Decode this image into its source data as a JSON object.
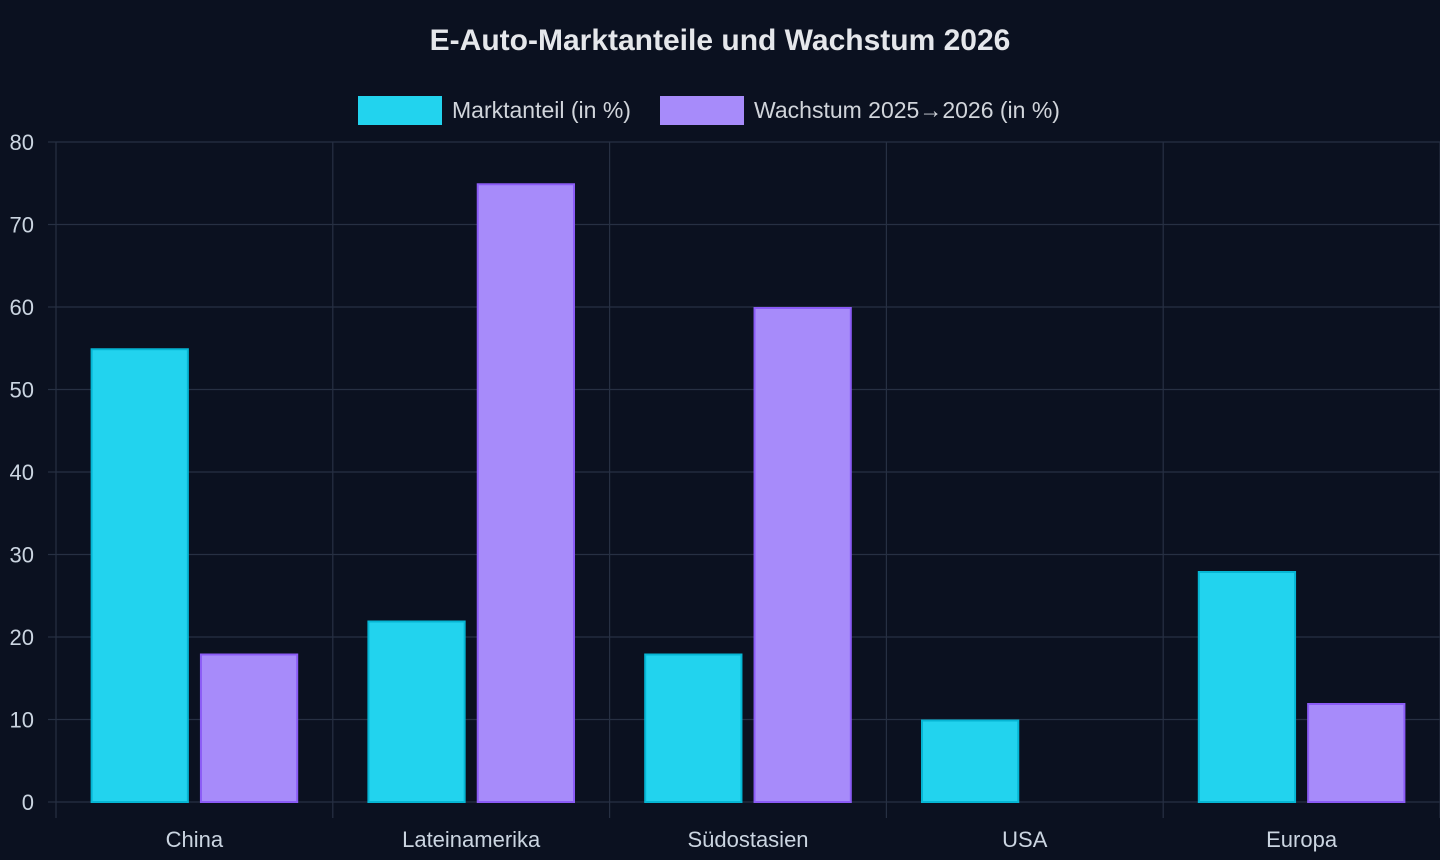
{
  "chart_data": {
    "type": "bar",
    "title": "E-Auto-Marktanteile und Wachstum 2026",
    "categories": [
      "China",
      "Lateinamerika",
      "Südostasien",
      "USA",
      "Europa"
    ],
    "series": [
      {
        "name": "Marktanteil (in %)",
        "values": [
          55,
          22,
          18,
          10,
          28
        ],
        "color": "#22d3ee",
        "border": "#06b6d4"
      },
      {
        "name": "Wachstum 2025→2026 (in %)",
        "values": [
          18,
          75,
          60,
          0,
          12
        ],
        "color": "#a78bfa",
        "border": "#8b5cf6"
      }
    ],
    "ylim": [
      0,
      80
    ],
    "yticks": [
      0,
      10,
      20,
      30,
      40,
      50,
      60,
      70,
      80
    ],
    "xlabel": "",
    "ylabel": "",
    "grid": true,
    "legend_position": "top-center",
    "colors": {
      "background": "#0b1120",
      "grid": "#273043",
      "text": "#cbd5e1"
    }
  }
}
